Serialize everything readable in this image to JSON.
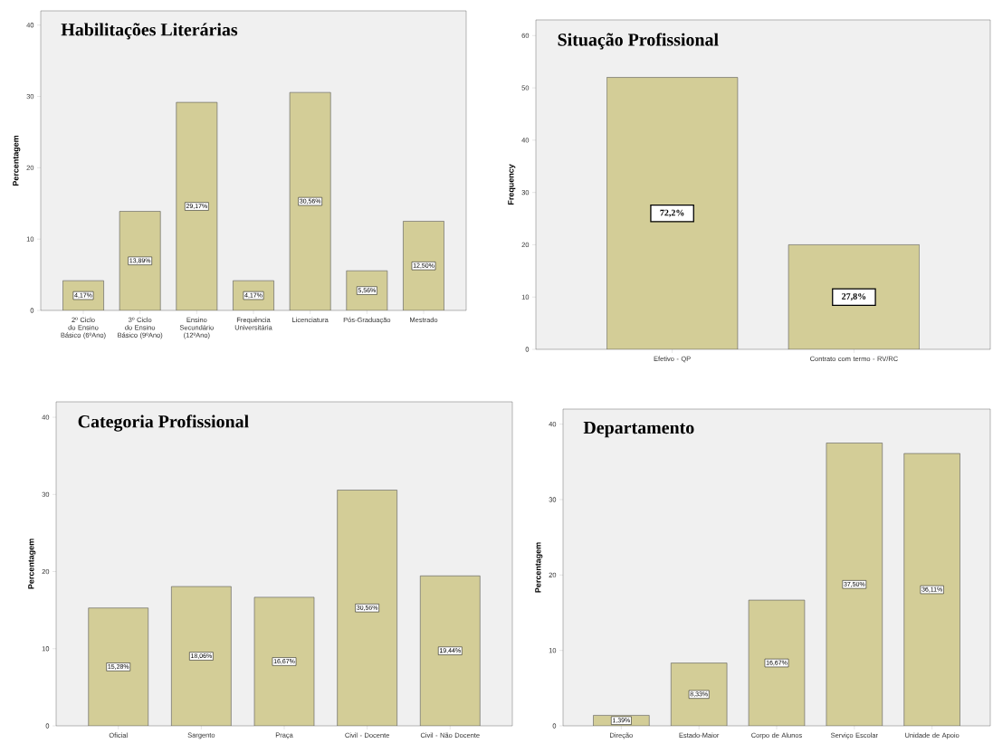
{
  "chart_data": [
    {
      "type": "bar",
      "title": "Habilitações Literárias",
      "ylabel": "Percentagem",
      "categories": [
        "2º Ciclo do Ensino Básico (6ºAno)",
        "3º Ciclo do Ensino Básico (9ºAno)",
        "Ensino Secundário (12ºAno)",
        "Frequência Universitária",
        "Licenciatura",
        "Pós-Graduação",
        "Mestrado"
      ],
      "values": [
        4.17,
        13.89,
        29.17,
        4.17,
        30.56,
        5.56,
        12.5
      ],
      "value_labels": [
        "4,17%",
        "13,89%",
        "29,17%",
        "4,17%",
        "30,56%",
        "5,56%",
        "12,50%"
      ],
      "color": "#d3cd97",
      "ylim": [
        0,
        42
      ],
      "yticks": [
        0,
        10,
        20,
        30,
        40
      ]
    },
    {
      "type": "bar",
      "title": "Situação Profissional",
      "ylabel": "Frequency",
      "categories": [
        "Efetivo - QP",
        "Contrato com termo - RV/RC"
      ],
      "values": [
        52,
        20
      ],
      "annotations": [
        "72,2%",
        "27,8%"
      ],
      "color": "#d3cd97",
      "ylim": [
        0,
        63
      ],
      "yticks": [
        0,
        10,
        20,
        30,
        40,
        50,
        60
      ]
    },
    {
      "type": "bar",
      "title": "Categoria Profissional",
      "ylabel": "Percentagem",
      "categories": [
        "Oficial",
        "Sargento",
        "Praça",
        "Civil - Docente",
        "Civil - Não Docente"
      ],
      "values": [
        15.28,
        18.06,
        16.67,
        30.56,
        19.44
      ],
      "value_labels": [
        "15,28%",
        "18,06%",
        "16,67%",
        "30,56%",
        "19,44%"
      ],
      "color": "#d3cd97",
      "ylim": [
        0,
        42
      ],
      "yticks": [
        0,
        10,
        20,
        30,
        40
      ]
    },
    {
      "type": "bar",
      "title": "Departamento",
      "ylabel": "Percentagem",
      "categories": [
        "Direção",
        "Estado-Maior",
        "Corpo de Alunos",
        "Serviço Escolar",
        "Unidade de Apoio"
      ],
      "values": [
        1.39,
        8.33,
        16.67,
        37.5,
        36.11
      ],
      "value_labels": [
        "1,39%",
        "8,33%",
        "16,67%",
        "37,50%",
        "36,11%"
      ],
      "color": "#d3cd97",
      "ylim": [
        0,
        42
      ],
      "yticks": [
        0,
        10,
        20,
        30,
        40
      ]
    }
  ]
}
